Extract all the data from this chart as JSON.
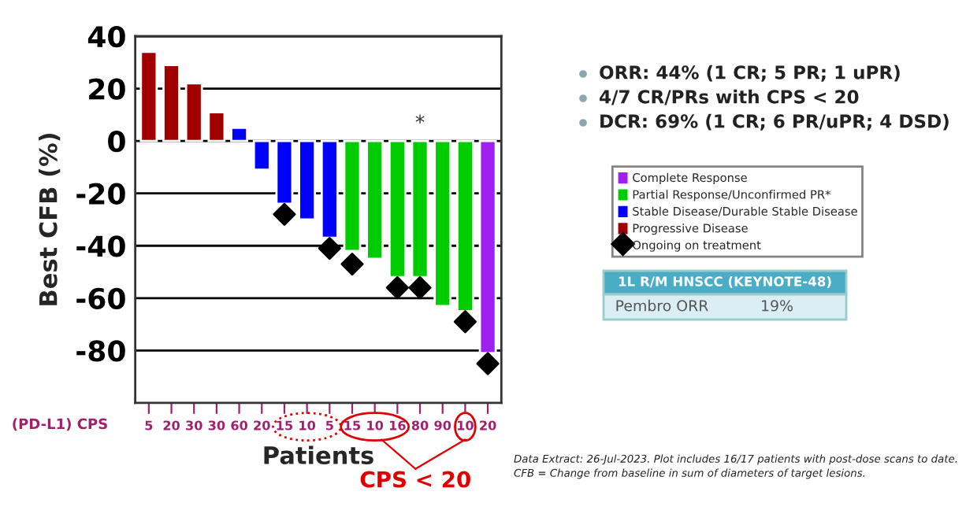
{
  "chart_data": {
    "type": "bar",
    "ylabel": "Best CFB (%)",
    "xlabel": "Patients",
    "categories": [
      "5",
      "20",
      "30",
      "30",
      "60",
      "20",
      "15",
      "10",
      "5",
      "15",
      "10",
      "16",
      "80",
      "90",
      "10",
      "20"
    ],
    "series": [
      {
        "name": "Complete Response",
        "color": "#a020f0",
        "values": [
          null,
          null,
          null,
          null,
          null,
          null,
          null,
          null,
          null,
          null,
          null,
          null,
          null,
          null,
          null,
          -81
        ]
      },
      {
        "name": "Partial Response/Unconfirmed PR*",
        "color": "#00cc00",
        "values": [
          null,
          null,
          null,
          null,
          null,
          null,
          null,
          null,
          null,
          -42,
          -45,
          -52,
          -52,
          -63,
          -65,
          null
        ]
      },
      {
        "name": "Stable Disease/Durable Stable Disease",
        "color": "#0000ff",
        "values": [
          null,
          null,
          null,
          null,
          5,
          -11,
          -24,
          -30,
          -37,
          null,
          null,
          null,
          null,
          null,
          null,
          null
        ]
      },
      {
        "name": "Progressive Disease",
        "color": "#a00000",
        "values": [
          34,
          29,
          22,
          11,
          null,
          null,
          null,
          null,
          null,
          null,
          null,
          null,
          null,
          null,
          null,
          null
        ]
      },
      {
        "name": "Ongoing on treatment",
        "type": "scatter",
        "marker": "diamond",
        "color": "#000000",
        "values": [
          null,
          null,
          null,
          null,
          null,
          null,
          -28,
          null,
          -41,
          -47,
          null,
          -56,
          -56,
          null,
          -69,
          -85
        ]
      }
    ],
    "ylim": [
      -100,
      40
    ],
    "yticks": [
      -80,
      -60,
      -40,
      -20,
      0,
      20,
      40
    ],
    "grid": "y",
    "legend": "right",
    "annotations": [
      {
        "text": "*",
        "x": "80",
        "y": 3
      },
      "(PD-L1) CPS",
      "CPS < 20",
      "ORR: 44% (1 CR; 5 PR; 1 uPR)",
      "4/7 CR/PRs with CPS < 20",
      "DCR: 69% (1 CR; 6 PR/uPR; 4 DSD)",
      "1L R/M HNSCC (KEYNOTE-48)",
      "Pembro ORR",
      "19%",
      "Data Extract: 26-Jul-2023. Plot includes 16/17 patients with post-dose scans to date.",
      "CFB = Change from baseline in sum of diameters of target lesions."
    ]
  }
}
